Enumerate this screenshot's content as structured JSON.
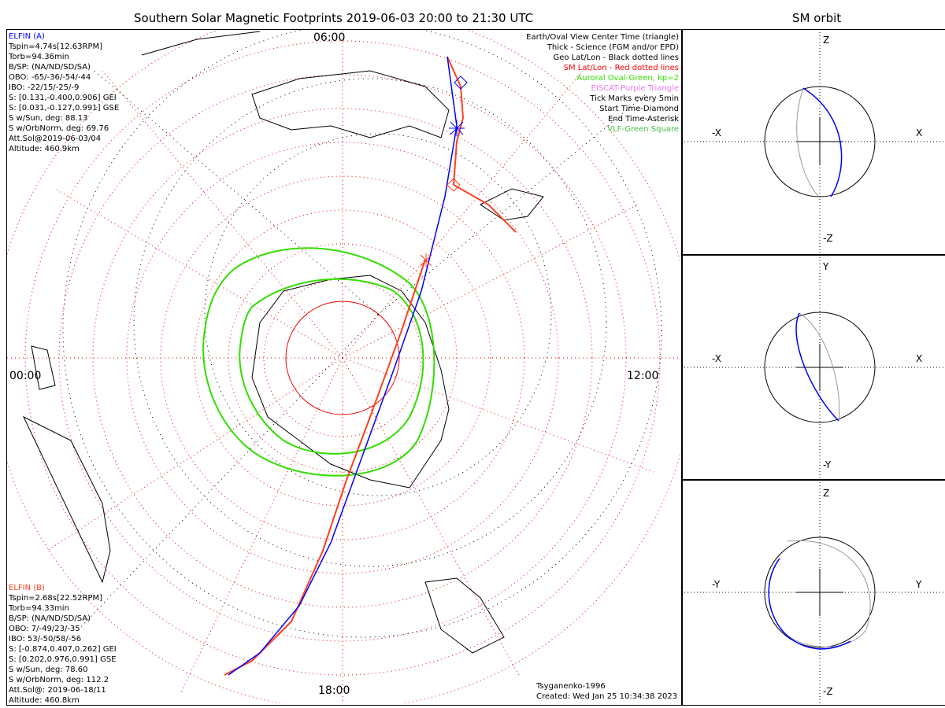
{
  "title": "Southern Solar Magnetic Footprints 2019-06-03 20:00 to 21:30 UTC",
  "sm_orbit_title": "SM orbit",
  "elfin_a": {
    "name": "ELFIN (A)",
    "color": "#0000ff",
    "lines": [
      "Tspin=4.74s[12.63RPM]",
      "Torb=94.36min",
      "B/SP: (NA/ND/SD/SA)",
      "OBO: -65/-36/-54/-44",
      "IBO: -22/15/-25/-9",
      "S: [0.131,-0.400,0.906] GEI",
      "S: [0.031,-0.127,0.991] GSE",
      "S w/Sun, deg: 88.13",
      "S w/OrbNorm, deg: 69.76",
      "Att.Sol@2019-06-03/04",
      "Altitude: 460.9km"
    ]
  },
  "elfin_b": {
    "name": "ELFIN (B)",
    "color": "#ff4020",
    "lines": [
      "Tspin=2.68s[22.52RPM]",
      "Torb=94.33min",
      "B/SP: (NA/ND/SD/SA)",
      "OBO: 7/-49/23/-35",
      "IBO: 53/-50/58/-56",
      "S: [-0.874,0.407,0.262] GEI",
      "S: [0.202,0.976,0.991] GSE",
      "S w/Sun, deg: 78.60",
      "S w/OrbNorm, deg: 112.2",
      "Att.Sol@: 2019-06-18/11",
      "Altitude: 460.8km"
    ]
  },
  "legend": [
    {
      "text": "Earth/Oval View Center Time (triangle)",
      "color": "#000000"
    },
    {
      "text": "Thick - Science (FGM and/or EPD)",
      "color": "#000000"
    },
    {
      "text": "Geo Lat/Lon - Black dotted lines",
      "color": "#000000"
    },
    {
      "text": "SM Lat/Lon - Red dotted lines",
      "color": "#ff0000"
    },
    {
      "text": "Auroral Oval-Green, kp=2",
      "color": "#33dd00"
    },
    {
      "text": "EISCAT-Purple Triangle",
      "color": "#ee77ee"
    },
    {
      "text": "Tick Marks every 5min",
      "color": "#000000"
    },
    {
      "text": "Start Time-Diamond",
      "color": "#000000"
    },
    {
      "text": "End Time-Asterisk",
      "color": "#000000"
    },
    {
      "text": "VLF-Green Square",
      "color": "#44bb44"
    }
  ],
  "mlt_labels": {
    "top": "06:00",
    "left": "00:00",
    "right": "12:00",
    "bottom": "18:00"
  },
  "footer": {
    "model": "Tsyganenko-1996",
    "created": "Created: Wed Jan 25 10:34:38 2023"
  },
  "panels": [
    {
      "up": "Z",
      "down": "-Z",
      "left": "-X",
      "right": "X"
    },
    {
      "up": "Y",
      "down": "-Y",
      "left": "-X",
      "right": "X"
    },
    {
      "up": "Z",
      "down": "-Z",
      "left": "-Y",
      "right": "Y"
    }
  ]
}
